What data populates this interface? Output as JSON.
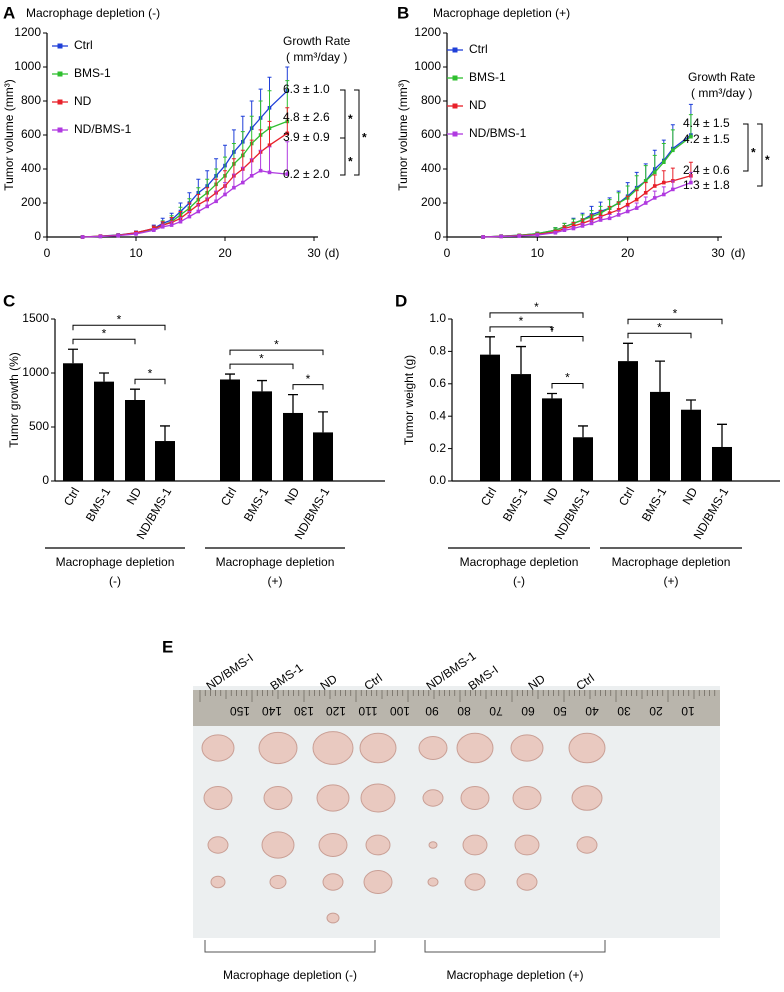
{
  "chart_data": [
    {
      "type": "line",
      "panel": "A",
      "title": "Macrophage depletion (-)",
      "ylabel": "Tumor volume (mm³)",
      "xlabel": "(d)",
      "x": [
        4,
        6,
        8,
        10,
        12,
        13,
        14,
        15,
        16,
        17,
        18,
        19,
        20,
        21,
        22,
        23,
        24,
        25,
        27
      ],
      "series": [
        {
          "name": "Ctrl",
          "color": "#1f3fd8",
          "values": [
            0,
            5,
            12,
            25,
            50,
            80,
            100,
            150,
            200,
            260,
            300,
            360,
            420,
            500,
            560,
            640,
            700,
            760,
            860
          ],
          "errors": [
            0,
            3,
            5,
            10,
            20,
            30,
            40,
            50,
            60,
            80,
            90,
            100,
            120,
            130,
            150,
            160,
            170,
            180,
            140
          ]
        },
        {
          "name": "BMS-1",
          "color": "#2fbf2f",
          "values": [
            0,
            4,
            10,
            22,
            45,
            70,
            90,
            130,
            170,
            220,
            260,
            310,
            360,
            430,
            480,
            550,
            600,
            640,
            680
          ],
          "errors": [
            0,
            3,
            5,
            8,
            15,
            25,
            35,
            45,
            55,
            70,
            80,
            90,
            110,
            120,
            140,
            160,
            200,
            220,
            240
          ]
        },
        {
          "name": "ND",
          "color": "#e8202a",
          "values": [
            0,
            5,
            10,
            25,
            50,
            70,
            85,
            110,
            150,
            190,
            220,
            260,
            300,
            360,
            400,
            450,
            500,
            540,
            610
          ],
          "errors": [
            0,
            3,
            5,
            8,
            15,
            20,
            30,
            40,
            50,
            60,
            70,
            80,
            90,
            100,
            110,
            120,
            130,
            140,
            150
          ]
        },
        {
          "name": "ND/BMS-1",
          "color": "#b03ae0",
          "values": [
            0,
            3,
            8,
            18,
            40,
            60,
            70,
            90,
            120,
            150,
            180,
            210,
            250,
            290,
            320,
            360,
            390,
            380,
            370
          ],
          "errors": [
            0,
            2,
            4,
            6,
            10,
            15,
            20,
            25,
            30,
            40,
            50,
            60,
            70,
            80,
            90,
            100,
            120,
            150,
            190
          ]
        }
      ],
      "xlim": [
        0,
        30
      ],
      "xticks": [
        0,
        10,
        20,
        30
      ],
      "ylim": [
        0,
        1200
      ],
      "yticks": [
        0,
        200,
        400,
        600,
        800,
        1000,
        1200
      ],
      "rate_title": "Growth Rate",
      "rate_unit": "( mm³/day )",
      "rates": [
        "6.3 ± 1.0",
        "4.8 ± 2.6",
        "3.9 ± 0.9",
        "0.2 ± 2.0"
      ],
      "brackets": [
        {
          "from": 0,
          "to": 2,
          "label": "*"
        },
        {
          "from": 2,
          "to": 3,
          "label": "*"
        },
        {
          "from": 0,
          "to": 3,
          "label": "*"
        }
      ]
    },
    {
      "type": "line",
      "panel": "B",
      "title": "Macrophage depletion (+)",
      "ylabel": "Tumor volume (mm³)",
      "xlabel": "(d)",
      "x": [
        4,
        6,
        8,
        10,
        12,
        13,
        14,
        15,
        16,
        17,
        18,
        19,
        20,
        21,
        22,
        23,
        24,
        25,
        27
      ],
      "series": [
        {
          "name": "Ctrl",
          "color": "#1f3fd8",
          "values": [
            0,
            5,
            10,
            20,
            40,
            60,
            80,
            100,
            130,
            150,
            170,
            200,
            240,
            290,
            330,
            400,
            450,
            520,
            600
          ],
          "errors": [
            0,
            3,
            5,
            8,
            15,
            20,
            30,
            40,
            50,
            55,
            60,
            70,
            80,
            90,
            100,
            110,
            120,
            140,
            180
          ]
        },
        {
          "name": "BMS-1",
          "color": "#2fbf2f",
          "values": [
            0,
            5,
            10,
            20,
            40,
            60,
            80,
            100,
            120,
            140,
            170,
            200,
            230,
            280,
            330,
            380,
            440,
            510,
            590
          ],
          "errors": [
            0,
            3,
            5,
            8,
            15,
            20,
            25,
            30,
            35,
            40,
            50,
            60,
            70,
            80,
            90,
            100,
            110,
            120,
            130
          ]
        },
        {
          "name": "ND",
          "color": "#e8202a",
          "values": [
            0,
            4,
            8,
            15,
            30,
            50,
            65,
            80,
            100,
            120,
            140,
            160,
            190,
            220,
            260,
            300,
            320,
            330,
            360
          ],
          "errors": [
            0,
            2,
            4,
            6,
            10,
            15,
            20,
            25,
            30,
            35,
            40,
            45,
            50,
            55,
            60,
            65,
            70,
            75,
            80
          ]
        },
        {
          "name": "ND/BMS-1",
          "color": "#b03ae0",
          "values": [
            0,
            3,
            6,
            12,
            25,
            40,
            50,
            65,
            80,
            100,
            110,
            130,
            150,
            170,
            200,
            230,
            250,
            280,
            320
          ],
          "errors": [
            0,
            2,
            3,
            5,
            8,
            10,
            12,
            15,
            18,
            20,
            22,
            25,
            28,
            30,
            35,
            40,
            45,
            50,
            60
          ]
        }
      ],
      "xlim": [
        0,
        30
      ],
      "xticks": [
        0,
        10,
        20,
        30
      ],
      "ylim": [
        0,
        1200
      ],
      "yticks": [
        0,
        200,
        400,
        600,
        800,
        1000,
        1200
      ],
      "rate_title": "Growth Rate",
      "rate_unit": "( mm³/day )",
      "rates": [
        "4.4 ± 1.5",
        "4.2 ± 1.5",
        "2.4 ± 0.6",
        "1.3 ± 1.8"
      ],
      "brackets": [
        {
          "from": 0,
          "to": 2,
          "label": "*"
        },
        {
          "from": 0,
          "to": 3,
          "label": "*"
        }
      ]
    },
    {
      "type": "bar",
      "panel": "C",
      "ylabel": "Tumor growth (%)",
      "color": "#000000",
      "ylim": [
        0,
        1500
      ],
      "yticks": [
        0,
        500,
        1000,
        1500
      ],
      "groups": [
        {
          "label": "Macrophage depletion",
          "sub": "(-)",
          "categories": [
            "Ctrl",
            "BMS-1",
            "ND",
            "ND/BMS-1"
          ],
          "values": [
            1090,
            920,
            750,
            370
          ],
          "errors": [
            130,
            80,
            100,
            140
          ],
          "brackets": [
            {
              "from": 2,
              "to": 3,
              "label": "*"
            },
            {
              "from": 0,
              "to": 2,
              "label": "*"
            },
            {
              "from": 0,
              "to": 3,
              "label": "*"
            }
          ]
        },
        {
          "label": "Macrophage depletion",
          "sub": "(+)",
          "categories": [
            "Ctrl",
            "BMS-1",
            "ND",
            "ND/BMS-1"
          ],
          "values": [
            940,
            830,
            630,
            450
          ],
          "errors": [
            50,
            100,
            170,
            190
          ],
          "brackets": [
            {
              "from": 2,
              "to": 3,
              "label": "*"
            },
            {
              "from": 0,
              "to": 2,
              "label": "*"
            },
            {
              "from": 0,
              "to": 3,
              "label": "*"
            }
          ]
        }
      ]
    },
    {
      "type": "bar",
      "panel": "D",
      "ylabel": "Tumor weight (g)",
      "color": "#000000",
      "ylim": [
        0,
        1.0
      ],
      "yticks": [
        {
          "value": 0,
          "label": "0.0"
        },
        0.2,
        0.4,
        0.6,
        0.8,
        {
          "value": 1,
          "label": "1.0"
        }
      ],
      "groups": [
        {
          "label": "Macrophage depletion",
          "sub": "(-)",
          "categories": [
            "Ctrl",
            "BMS-1",
            "ND",
            "ND/BMS-1"
          ],
          "values": [
            0.78,
            0.66,
            0.51,
            0.27
          ],
          "errors": [
            0.11,
            0.17,
            0.03,
            0.07
          ],
          "brackets": [
            {
              "from": 2,
              "to": 3,
              "label": "*"
            },
            {
              "from": 1,
              "to": 3,
              "label": "*"
            },
            {
              "from": 0,
              "to": 2,
              "label": "*"
            },
            {
              "from": 0,
              "to": 3,
              "label": "*"
            }
          ]
        },
        {
          "label": "Macrophage depletion",
          "sub": "(+)",
          "categories": [
            "Ctrl",
            "BMS-1",
            "ND",
            "ND/BMS-1"
          ],
          "values": [
            0.74,
            0.55,
            0.44,
            0.21
          ],
          "errors": [
            0.11,
            0.19,
            0.06,
            0.14
          ],
          "brackets": [
            {
              "from": 0,
              "to": 2,
              "label": "*"
            },
            {
              "from": 0,
              "to": 3,
              "label": "*"
            }
          ]
        }
      ]
    }
  ],
  "photo": {
    "panel": "E",
    "labels": [
      "ND/BMS-I",
      "BMS-1",
      "ND",
      "Ctrl",
      "ND/BMS-1",
      "BMS-I",
      "ND",
      "Ctrl"
    ],
    "ruler": [
      "150",
      "140",
      "130",
      "120",
      "110",
      "100",
      "90",
      "80",
      "70",
      "60",
      "50",
      "40",
      "30",
      "20",
      "10"
    ],
    "groups": [
      "Macrophage depletion (-)",
      "Macrophage depletion (+)"
    ]
  }
}
